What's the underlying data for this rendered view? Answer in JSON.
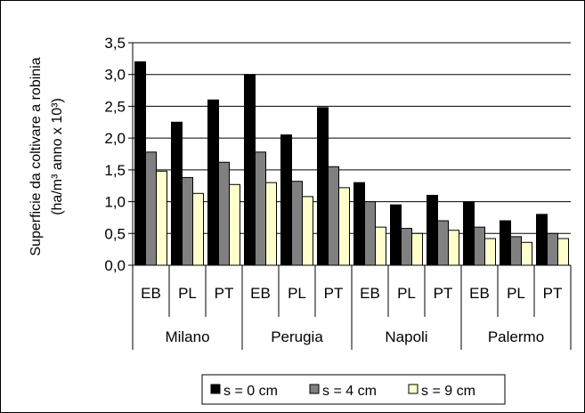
{
  "chart_data": {
    "type": "bar",
    "ylabel_line1": "Superficie da coltivare a robinia",
    "ylabel_line2": "(ha/m³ anno x 10³)",
    "ylim": [
      0,
      3.5
    ],
    "yticks": [
      "0,0",
      "0,5",
      "1,0",
      "1,5",
      "2,0",
      "2,5",
      "3,0",
      "3,5"
    ],
    "grid": true,
    "legend_position": "bottom",
    "groups": [
      {
        "name": "Milano",
        "categories": [
          "EB",
          "PL",
          "PT"
        ]
      },
      {
        "name": "Perugia",
        "categories": [
          "EB",
          "PL",
          "PT"
        ]
      },
      {
        "name": "Napoli",
        "categories": [
          "EB",
          "PL",
          "PT"
        ]
      },
      {
        "name": "Palermo",
        "categories": [
          "EB",
          "PL",
          "PT"
        ]
      }
    ],
    "series": [
      {
        "name": "s = 0 cm",
        "color": "#000000",
        "values": [
          3.2,
          2.25,
          2.6,
          3.0,
          2.05,
          2.48,
          1.3,
          0.95,
          1.1,
          1.0,
          0.7,
          0.8
        ]
      },
      {
        "name": "s = 4 cm",
        "color": "#808080",
        "values": [
          1.78,
          1.38,
          1.62,
          1.78,
          1.32,
          1.55,
          1.0,
          0.58,
          0.7,
          0.6,
          0.45,
          0.5
        ]
      },
      {
        "name": "s = 9 cm",
        "color": "#ffffcc",
        "values": [
          1.48,
          1.13,
          1.27,
          1.3,
          1.08,
          1.22,
          0.6,
          0.5,
          0.55,
          0.42,
          0.36,
          0.42
        ]
      }
    ]
  }
}
